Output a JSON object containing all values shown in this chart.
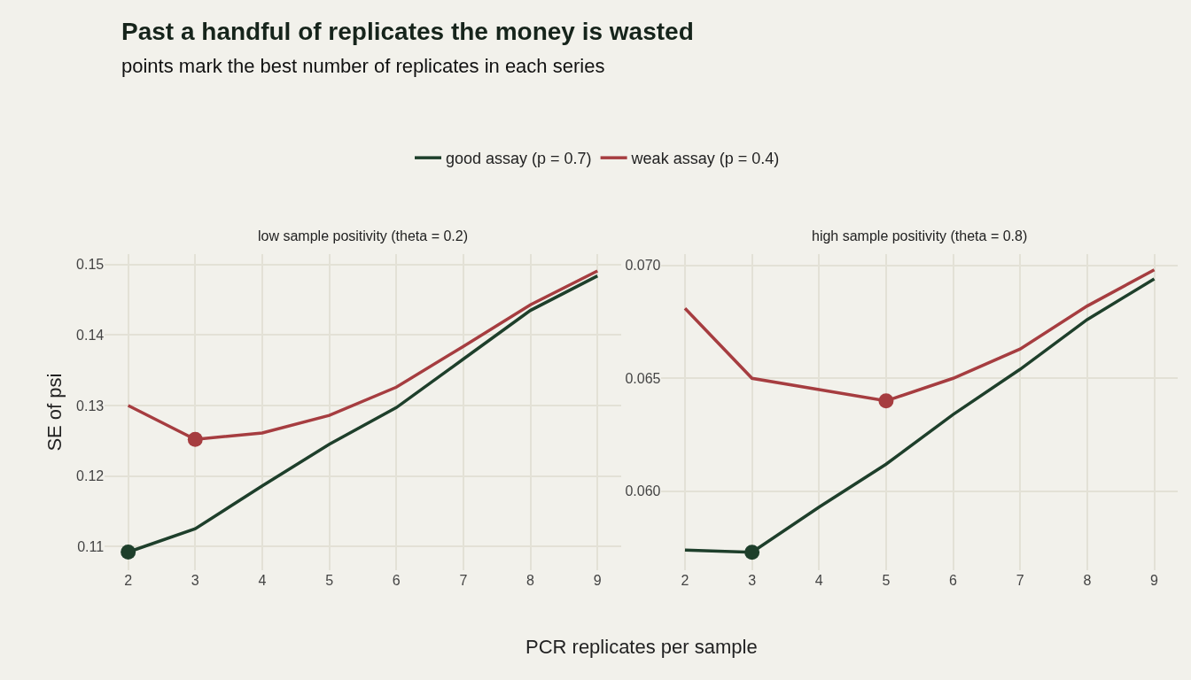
{
  "chart_data": [
    {
      "type": "line",
      "title": "low sample positivity (theta = 0.2)",
      "annotations": [
        "Past a handful of replicates the money is wasted",
        "points mark the best number of replicates in each series"
      ],
      "xlabel": "PCR replicates per sample",
      "ylabel": "SE of psi",
      "x": [
        2,
        3,
        4,
        5,
        6,
        7,
        8,
        9
      ],
      "series": [
        {
          "name": "good assay (p = 0.7)",
          "color": "#1e3f2b",
          "values": [
            0.1092,
            0.1125,
            0.1186,
            0.1245,
            0.1297,
            0.1366,
            0.1435,
            0.1484
          ]
        },
        {
          "name": "weak assay (p = 0.4)",
          "color": "#a63d40",
          "values": [
            0.13,
            0.1252,
            0.1261,
            0.1286,
            0.1326,
            0.1384,
            0.1443,
            0.1491
          ]
        },
        {
          "type": "scatter",
          "color": "#1e3f2b",
          "x": [
            2
          ],
          "values": [
            0.1092
          ]
        },
        {
          "type": "scatter",
          "color": "#a63d40",
          "x": [
            3
          ],
          "values": [
            0.1252
          ]
        }
      ],
      "xlim": [
        1.65,
        9.35
      ],
      "xticks": [
        2,
        3,
        4,
        5,
        6,
        7,
        8,
        9
      ],
      "ylim": [
        0.1066,
        0.1515
      ],
      "yticks": [
        0.11,
        0.12,
        0.13,
        0.14,
        0.15
      ],
      "grid": true,
      "legend": "top"
    },
    {
      "type": "line",
      "title": "high sample positivity (theta = 0.8)",
      "x": [
        2,
        3,
        4,
        5,
        6,
        7,
        8,
        9
      ],
      "series": [
        {
          "color": "#1e3f2b",
          "values": [
            0.0574,
            0.0573,
            0.0593,
            0.0612,
            0.0634,
            0.0654,
            0.0676,
            0.0694
          ]
        },
        {
          "color": "#a63d40",
          "values": [
            0.0681,
            0.065,
            0.0645,
            0.064,
            0.065,
            0.0663,
            0.0682,
            0.0698
          ]
        },
        {
          "type": "scatter",
          "color": "#1e3f2b",
          "x": [
            3
          ],
          "values": [
            0.0573
          ]
        },
        {
          "type": "scatter",
          "color": "#a63d40",
          "x": [
            5
          ],
          "values": [
            0.064
          ]
        }
      ],
      "xlim": [
        1.65,
        9.35
      ],
      "xticks": [
        2,
        3,
        4,
        5,
        6,
        7,
        8,
        9
      ],
      "ylim": [
        0.0565,
        0.0705
      ],
      "yticks": [
        {
          "value": 0.06,
          "label": "0.060"
        },
        {
          "value": 0.065,
          "label": "0.065"
        },
        {
          "value": 0.07,
          "label": "0.070"
        }
      ],
      "grid": true
    }
  ]
}
